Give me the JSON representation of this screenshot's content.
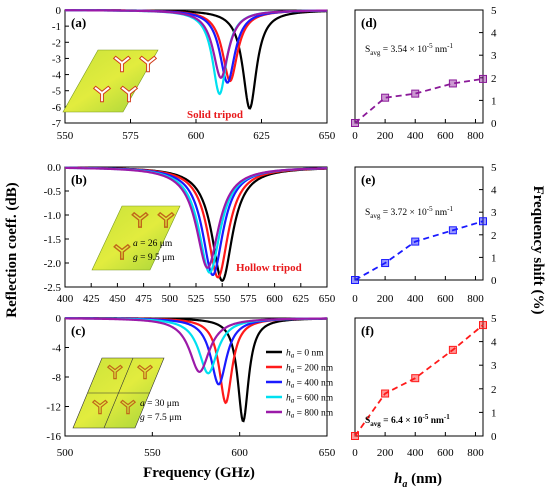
{
  "figure": {
    "left_ylabel": "Reflection coeff. (dB)",
    "right_ylabel": "Frequency shift (%)",
    "left_xlabel": "Frequency (GHz)",
    "right_xlabel_main": "h",
    "right_xlabel_sub": "a",
    "right_xlabel_unit": " (nm)"
  },
  "legend": [
    {
      "h": "h",
      "sub": "a",
      "value": " = 0 nm",
      "color": "#000000"
    },
    {
      "h": "h",
      "sub": "a",
      "value": " = 200 nm",
      "color": "#ff1a1a"
    },
    {
      "h": "h",
      "sub": "a",
      "value": " = 400 nm",
      "color": "#1a1aff"
    },
    {
      "h": "h",
      "sub": "a",
      "value": " = 600 nm",
      "color": "#00e0f0"
    },
    {
      "h": "h",
      "sub": "a",
      "value": " = 800 nm",
      "color": "#9b1aa8"
    }
  ],
  "chart_data": [
    {
      "id": "a",
      "type": "line",
      "label": "(a)",
      "xlim": [
        550,
        650
      ],
      "ylim": [
        -7,
        0
      ],
      "xticks": [
        550,
        575,
        600,
        625,
        650
      ],
      "yticks": [
        0,
        -1,
        -2,
        -3,
        -4,
        -5,
        -6,
        -7
      ],
      "annotation": "Solid tripod",
      "series": [
        {
          "name": "h_a = 0 nm",
          "color": "#000000",
          "center": 620.5,
          "depth": 6.1,
          "width": 3.2
        },
        {
          "name": "h_a = 200 nm",
          "color": "#ff1a1a",
          "center": 613.0,
          "depth": 4.4,
          "width": 3.5
        },
        {
          "name": "h_a = 400 nm",
          "color": "#1a1aff",
          "center": 612.0,
          "depth": 4.5,
          "width": 3.5
        },
        {
          "name": "h_a = 600 nm",
          "color": "#00e0f0",
          "center": 609.0,
          "depth": 5.2,
          "width": 3.3
        },
        {
          "name": "h_a = 800 nm",
          "color": "#9b1aa8",
          "center": 609.5,
          "depth": 4.2,
          "width": 3.6
        }
      ]
    },
    {
      "id": "b",
      "type": "line",
      "label": "(b)",
      "xlim": [
        400,
        650
      ],
      "ylim": [
        -2.5,
        0
      ],
      "xticks": [
        400,
        425,
        450,
        475,
        500,
        525,
        550,
        575,
        600,
        625,
        650
      ],
      "yticks": [
        0.0,
        -0.5,
        -1.0,
        -1.5,
        -2.0,
        -2.5
      ],
      "annotation": "Hollow tripod",
      "param_a_sym": "a",
      "param_a_val": " = 26 μm",
      "param_g_sym": "g",
      "param_g_val": " = 9.5 μm",
      "series": [
        {
          "name": "h_a = 0 nm",
          "color": "#000000",
          "center": 550.0,
          "depth": 2.37,
          "width": 12.0
        },
        {
          "name": "h_a = 200 nm",
          "color": "#ff1a1a",
          "center": 546.0,
          "depth": 2.3,
          "width": 12.0
        },
        {
          "name": "h_a = 400 nm",
          "color": "#1a1aff",
          "center": 541.0,
          "depth": 2.25,
          "width": 12.0
        },
        {
          "name": "h_a = 600 nm",
          "color": "#00e0f0",
          "center": 538.0,
          "depth": 2.2,
          "width": 12.5
        },
        {
          "name": "h_a = 800 nm",
          "color": "#9b1aa8",
          "center": 536.0,
          "depth": 2.1,
          "width": 13.0
        }
      ]
    },
    {
      "id": "c",
      "type": "line",
      "label": "(c)",
      "xlim": [
        500,
        650
      ],
      "ylim": [
        -16,
        0
      ],
      "xticks": [
        500,
        550,
        600,
        650
      ],
      "yticks": [
        0,
        -4,
        -8,
        -12,
        -16
      ],
      "param_a_sym": "a",
      "param_a_val": " = 30 μm",
      "param_g_sym": "g",
      "param_g_val": " = 7.5 μm",
      "series": [
        {
          "name": "h_a = 0 nm",
          "color": "#000000",
          "center": 602.0,
          "depth": 14.0,
          "width": 3.8
        },
        {
          "name": "h_a = 200 nm",
          "color": "#ff1a1a",
          "center": 592.0,
          "depth": 11.5,
          "width": 4.5
        },
        {
          "name": "h_a = 400 nm",
          "color": "#1a1aff",
          "center": 588.0,
          "depth": 9.0,
          "width": 5.5
        },
        {
          "name": "h_a = 600 nm",
          "color": "#00e0f0",
          "center": 582.0,
          "depth": 7.5,
          "width": 6.5
        },
        {
          "name": "h_a = 800 nm",
          "color": "#9b1aa8",
          "center": 577.0,
          "depth": 7.3,
          "width": 7.0
        }
      ]
    },
    {
      "id": "d",
      "type": "line",
      "label": "(d)",
      "xlim": [
        0,
        850
      ],
      "ylim": [
        0,
        5
      ],
      "xticks": [
        0,
        200,
        400,
        600,
        800
      ],
      "yticks": [
        0,
        1,
        2,
        3,
        4,
        5
      ],
      "color": "#8b1a99",
      "x": [
        0,
        200,
        400,
        650,
        850
      ],
      "y": [
        0.0,
        1.12,
        1.3,
        1.75,
        1.95
      ],
      "savg_pre": "S",
      "savg_sub": "avg",
      "savg_val": " = 3.54 × 10",
      "savg_exp": "-5",
      "savg_unit": " nm",
      "savg_exp2": "-1"
    },
    {
      "id": "e",
      "type": "line",
      "label": "(e)",
      "xlim": [
        0,
        850
      ],
      "ylim": [
        0,
        5
      ],
      "xticks": [
        0,
        200,
        400,
        600,
        800
      ],
      "yticks": [
        0,
        1,
        2,
        3,
        4,
        5
      ],
      "color": "#1a1aff",
      "x": [
        0,
        200,
        400,
        650,
        850
      ],
      "y": [
        0.0,
        0.75,
        1.7,
        2.2,
        2.6
      ],
      "savg_pre": "S",
      "savg_sub": "avg",
      "savg_val": " = 3.72 × 10",
      "savg_exp": "-5",
      "savg_unit": " nm",
      "savg_exp2": "-1"
    },
    {
      "id": "f",
      "type": "line",
      "label": "(f)",
      "xlim": [
        0,
        850
      ],
      "ylim": [
        0,
        5
      ],
      "xticks": [
        0,
        200,
        400,
        600,
        800
      ],
      "yticks": [
        0,
        1,
        2,
        3,
        4,
        5
      ],
      "color": "#ff1a1a",
      "x": [
        0,
        200,
        400,
        650,
        850
      ],
      "y": [
        0.0,
        1.8,
        2.45,
        3.65,
        4.7
      ],
      "savg_pre": "S",
      "savg_sub": "avg",
      "savg_val": " = 6.4 × 10",
      "savg_exp": "-5",
      "savg_unit": " nm",
      "savg_exp2": "-1"
    }
  ]
}
